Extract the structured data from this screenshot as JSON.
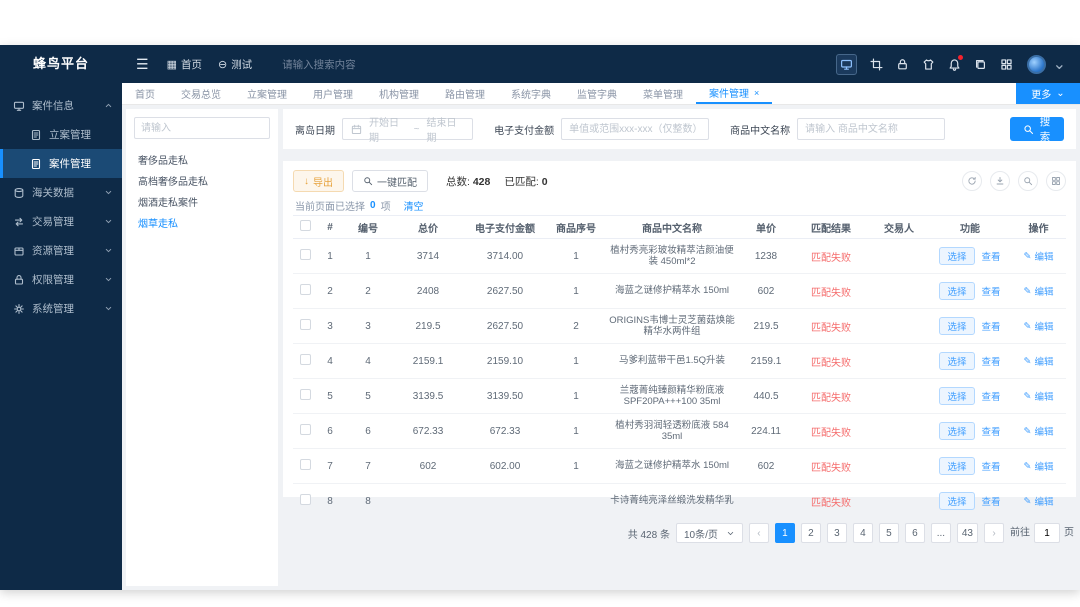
{
  "app": {
    "title": "蜂鸟平台"
  },
  "header": {
    "home_label": "首页",
    "test_label": "测试",
    "search_placeholder": "请输入搜索内容",
    "icons": [
      {
        "name": "screen-share-icon",
        "glyph": "monitor",
        "boxed": true
      },
      {
        "name": "screenshot-icon",
        "glyph": "crop"
      },
      {
        "name": "lock-screen-icon",
        "glyph": "lock"
      },
      {
        "name": "theme-icon",
        "glyph": "shirt"
      },
      {
        "name": "notification-bell-icon",
        "glyph": "bell",
        "badge": true
      },
      {
        "name": "copy-icon",
        "glyph": "copy"
      },
      {
        "name": "apps-grid-icon",
        "glyph": "squares"
      }
    ]
  },
  "sidebar": {
    "items": [
      {
        "label": "案件信息",
        "icon": "monitor",
        "expanded": true,
        "children": [
          {
            "label": "立案管理",
            "icon": "doc",
            "active": false
          },
          {
            "label": "案件管理",
            "icon": "doc",
            "active": true
          }
        ]
      },
      {
        "label": "海关数据",
        "icon": "db",
        "expanded": false
      },
      {
        "label": "交易管理",
        "icon": "exchange",
        "expanded": false
      },
      {
        "label": "资源管理",
        "icon": "box",
        "expanded": false
      },
      {
        "label": "权限管理",
        "icon": "lock",
        "expanded": false
      },
      {
        "label": "系统管理",
        "icon": "gear",
        "expanded": false
      }
    ]
  },
  "tabs": {
    "items": [
      {
        "label": "首页"
      },
      {
        "label": "交易总览"
      },
      {
        "label": "立案管理"
      },
      {
        "label": "用户管理"
      },
      {
        "label": "机构管理"
      },
      {
        "label": "路由管理"
      },
      {
        "label": "系统字典"
      },
      {
        "label": "监管字典"
      },
      {
        "label": "菜单管理"
      },
      {
        "label": "案件管理",
        "active": true,
        "closable": true
      }
    ],
    "more_label": "更多"
  },
  "left_panel": {
    "search_placeholder": "请输入",
    "items": [
      {
        "label": "奢侈品走私",
        "active": false
      },
      {
        "label": "高档奢侈品走私",
        "active": false
      },
      {
        "label": "烟酒走私案件",
        "active": false
      },
      {
        "label": "烟草走私",
        "active": true
      }
    ]
  },
  "filters": {
    "date_label": "离岛日期",
    "date_start_placeholder": "开始日期",
    "date_separator": "~",
    "date_end_placeholder": "结束日期",
    "amount_label": "电子支付金额",
    "amount_placeholder": "单值或范围xxx-xxx（仅整数）",
    "name_label": "商品中文名称",
    "name_placeholder": "请输入 商品中文名称",
    "search_button": "搜索"
  },
  "toolbar": {
    "export_label": "导出",
    "match_label": "一键匹配",
    "total_label": "总数:",
    "total_value": "428",
    "matched_label": "已匹配:",
    "matched_value": "0"
  },
  "selection": {
    "prefix": "当前页面已选择",
    "count": "0",
    "suffix": "项",
    "clear_label": "清空"
  },
  "table": {
    "columns": [
      "#",
      "编号",
      "总价",
      "电子支付金额",
      "商品序号",
      "商品中文名称",
      "单价",
      "匹配结果",
      "交易人",
      "功能",
      "操作"
    ],
    "match_fail_text": "匹配失败",
    "select_label": "选择",
    "view_label": "查看",
    "edit_label": "编辑",
    "rows": [
      {
        "index": "1",
        "no": "1",
        "total": "3714",
        "epay": "3714.00",
        "seq": "1",
        "name": "植村秀亮彩玻妆精萃洁颜油便装 450ml*2",
        "price": "1238",
        "trader": ""
      },
      {
        "index": "2",
        "no": "2",
        "total": "2408",
        "epay": "2627.50",
        "seq": "1",
        "name": "海蓝之谜修护精萃水 150ml",
        "price": "602",
        "trader": ""
      },
      {
        "index": "3",
        "no": "3",
        "total": "219.5",
        "epay": "2627.50",
        "seq": "2",
        "name": "ORIGINS韦博士灵芝菌菇焕能精华水两件组",
        "price": "219.5",
        "trader": ""
      },
      {
        "index": "4",
        "no": "4",
        "total": "2159.1",
        "epay": "2159.10",
        "seq": "1",
        "name": "马爹利蓝带干邑1.5Q升装",
        "price": "2159.1",
        "trader": ""
      },
      {
        "index": "5",
        "no": "5",
        "total": "3139.5",
        "epay": "3139.50",
        "seq": "1",
        "name": "兰蔻菁纯臻颜精华粉底液SPF20PA+++100 35ml",
        "price": "440.5",
        "trader": ""
      },
      {
        "index": "6",
        "no": "6",
        "total": "672.33",
        "epay": "672.33",
        "seq": "1",
        "name": "植村秀羽润轻透粉底液 584 35ml",
        "price": "224.11",
        "trader": ""
      },
      {
        "index": "7",
        "no": "7",
        "total": "602",
        "epay": "602.00",
        "seq": "1",
        "name": "海蓝之谜修护精萃水 150ml",
        "price": "602",
        "trader": ""
      },
      {
        "index": "8",
        "no": "8",
        "total": "",
        "epay": "",
        "seq": "",
        "name": "卡诗菁纯亮泽丝缎洗发精华乳",
        "price": "",
        "trader": ""
      }
    ],
    "toolbar_icons": [
      {
        "name": "refresh-icon",
        "glyph": "refresh"
      },
      {
        "name": "export-table-icon",
        "glyph": "download"
      },
      {
        "name": "search-table-icon",
        "glyph": "search"
      },
      {
        "name": "column-settings-icon",
        "glyph": "squares"
      }
    ]
  },
  "pagination": {
    "total_text": "共 428 条",
    "page_size": "10条/页",
    "pages": [
      "1",
      "2",
      "3",
      "4",
      "5",
      "6",
      "...",
      "43"
    ],
    "active_page": "1",
    "jump_prefix": "前往",
    "jump_value": "1",
    "jump_suffix": "页"
  },
  "colors": {
    "accent": "#1890ff",
    "danger": "#f56c6c",
    "warning": "#e6a23c",
    "sidebar_bg": "#0e2a47"
  }
}
